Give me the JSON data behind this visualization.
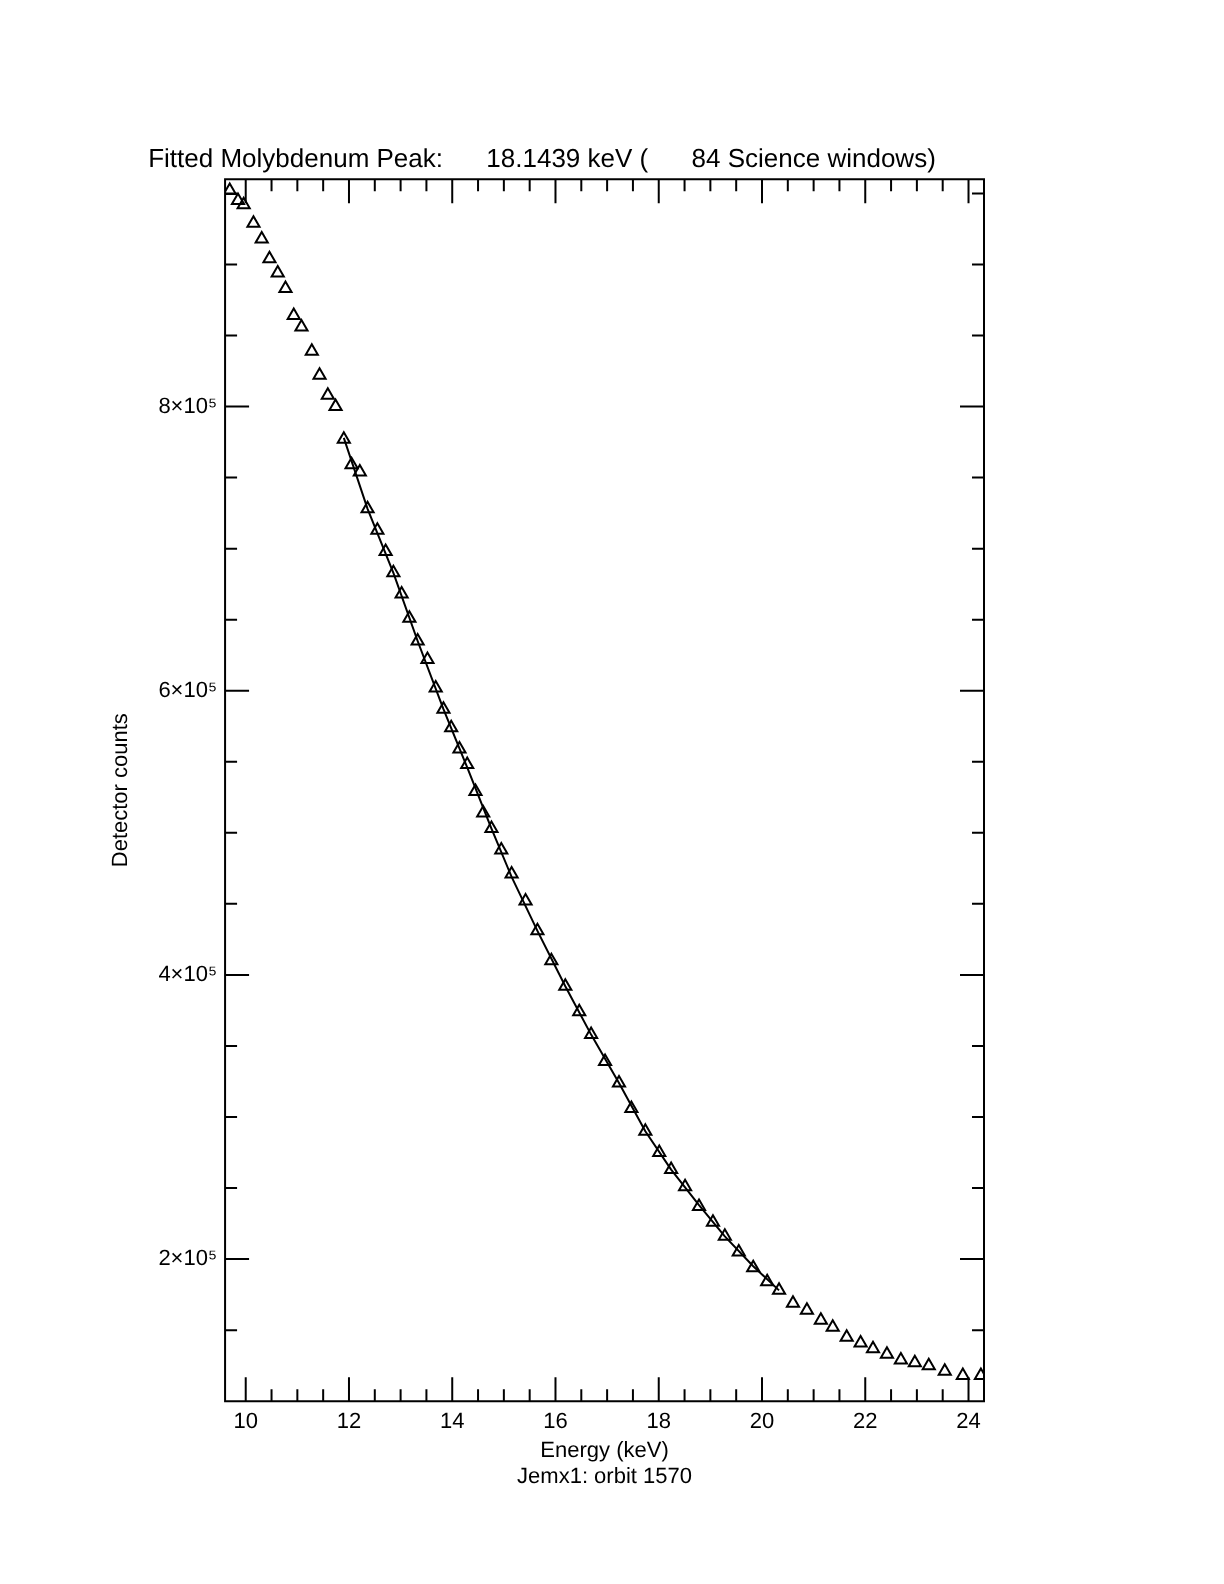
{
  "chart_data": {
    "type": "scatter",
    "title": "Fitted Molybdenum Peak:      18.1439 keV (      84 Science windows)",
    "xlabel": "Energy (keV)",
    "ylabel": "Detector counts",
    "annotations": [
      "Jemx1: orbit 1570"
    ],
    "legend": false,
    "xlim": [
      9.6,
      24.3
    ],
    "xticks": [
      10,
      {
        "value": 10.5,
        "label": null
      },
      {
        "value": 11,
        "label": null
      },
      {
        "value": 11.5,
        "label": null
      },
      12,
      {
        "value": 12.5,
        "label": null
      },
      {
        "value": 13,
        "label": null
      },
      {
        "value": 13.5,
        "label": null
      },
      14,
      {
        "value": 14.5,
        "label": null
      },
      {
        "value": 15,
        "label": null
      },
      {
        "value": 15.5,
        "label": null
      },
      16,
      {
        "value": 16.5,
        "label": null
      },
      {
        "value": 17,
        "label": null
      },
      {
        "value": 17.5,
        "label": null
      },
      18,
      {
        "value": 18.5,
        "label": null
      },
      {
        "value": 19,
        "label": null
      },
      {
        "value": 19.5,
        "label": null
      },
      20,
      {
        "value": 20.5,
        "label": null
      },
      {
        "value": 21,
        "label": null
      },
      {
        "value": 21.5,
        "label": null
      },
      22,
      {
        "value": 22.5,
        "label": null
      },
      {
        "value": 23,
        "label": null
      },
      {
        "value": 23.5,
        "label": null
      },
      24
    ],
    "ylim": [
      100000,
      960000
    ],
    "yticks": [
      {
        "value": 150000,
        "label": null
      },
      {
        "value": 200000,
        "label": "2×10⁵"
      },
      {
        "value": 250000,
        "label": null
      },
      {
        "value": 300000,
        "label": null
      },
      {
        "value": 350000,
        "label": null
      },
      {
        "value": 400000,
        "label": "4×10⁵"
      },
      {
        "value": 450000,
        "label": null
      },
      {
        "value": 500000,
        "label": null
      },
      {
        "value": 550000,
        "label": null
      },
      {
        "value": 600000,
        "label": "6×10⁵"
      },
      {
        "value": 650000,
        "label": null
      },
      {
        "value": 700000,
        "label": null
      },
      {
        "value": 750000,
        "label": null
      },
      {
        "value": 800000,
        "label": "8×10⁵"
      },
      {
        "value": 850000,
        "label": null
      },
      {
        "value": 900000,
        "label": null
      },
      {
        "value": 950000,
        "label": null
      }
    ],
    "series": [
      {
        "marker": "triangle",
        "color": "#000000",
        "x": [
          9.69,
          9.85,
          9.96,
          10.15,
          10.31,
          10.46,
          10.62,
          10.77,
          10.93,
          11.08,
          11.28,
          11.43,
          11.59,
          11.74,
          11.9,
          12.05,
          12.21,
          12.36,
          12.55,
          12.71,
          12.86,
          13.02,
          13.17,
          13.33,
          13.52,
          13.68,
          13.83,
          13.98,
          14.14,
          14.29,
          14.45,
          14.6,
          14.76,
          14.95,
          15.15,
          15.42,
          15.65,
          15.92,
          16.19,
          16.46,
          16.69,
          16.96,
          17.23,
          17.47,
          17.74,
          18.01,
          18.24,
          18.51,
          18.78,
          19.05,
          19.28,
          19.55,
          19.83,
          20.1,
          20.33,
          20.6,
          20.87,
          21.14,
          21.37,
          21.64,
          21.91,
          22.15,
          22.42,
          22.69,
          22.96,
          23.23,
          23.54,
          23.89,
          24.24
        ],
        "values": [
          952000,
          945000,
          942000,
          929000,
          918000,
          904000,
          894000,
          883000,
          864000,
          856000,
          839000,
          822000,
          808000,
          800000,
          777000,
          759000,
          754000,
          728000,
          713000,
          698000,
          683000,
          668000,
          651000,
          635000,
          622000,
          602000,
          587000,
          574000,
          559000,
          548000,
          529000,
          514000,
          503000,
          488000,
          471000,
          452000,
          431000,
          410000,
          392000,
          374000,
          358000,
          339000,
          324000,
          306000,
          290000,
          275000,
          263000,
          251000,
          237000,
          226000,
          216000,
          205000,
          194000,
          184000,
          178000,
          169000,
          164000,
          157000,
          152000,
          145000,
          141000,
          137000,
          133000,
          129000,
          127000,
          125000,
          121000,
          118000,
          118000
        ]
      },
      {
        "type": "line",
        "marker": "none",
        "color": "#000000",
        "x": [
          11.9,
          12.36,
          12.86,
          13.33,
          13.83,
          14.29,
          14.76,
          15.15,
          15.65,
          16.19,
          16.69,
          17.23,
          17.74,
          18.24,
          18.78,
          19.28,
          19.83,
          20.33
        ],
        "values": [
          778000,
          728000,
          683000,
          635000,
          587000,
          546000,
          503000,
          469000,
          431000,
          392000,
          358000,
          324000,
          290000,
          263000,
          238000,
          216000,
          195000,
          178000
        ]
      }
    ]
  }
}
